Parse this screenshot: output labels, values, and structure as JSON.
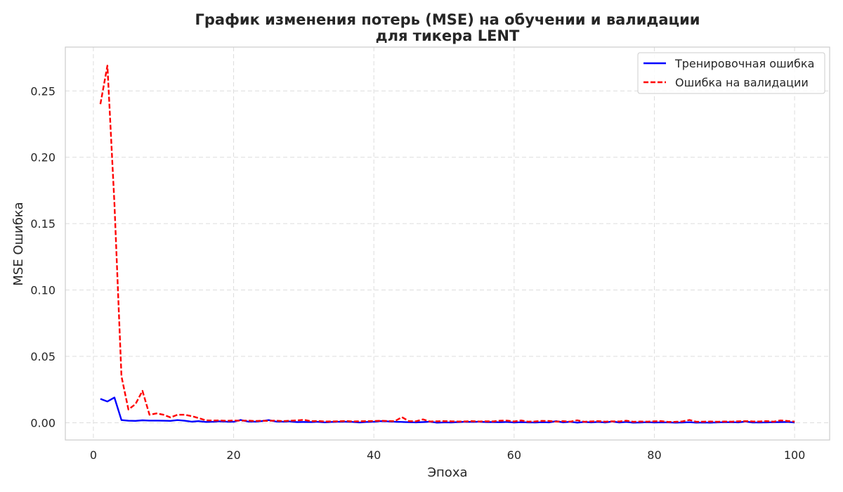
{
  "chart_data": {
    "type": "line",
    "title_line1": "График изменения потерь (MSE) на обучении и валидации",
    "title_line2": "для тикера LENT",
    "xlabel": "Эпоха",
    "ylabel": "MSE Ошибка",
    "xlim": [
      -4,
      105
    ],
    "ylim": [
      -0.013,
      0.283
    ],
    "xticks": [
      0,
      20,
      40,
      60,
      80,
      100
    ],
    "xtick_labels": [
      "0",
      "20",
      "40",
      "60",
      "80",
      "100"
    ],
    "yticks": [
      0.0,
      0.05,
      0.1,
      0.15,
      0.2,
      0.25
    ],
    "ytick_labels": [
      "0.00",
      "0.05",
      "0.10",
      "0.15",
      "0.20",
      "0.25"
    ],
    "grid": true,
    "legend_position": "top-right",
    "x": [
      1,
      2,
      3,
      4,
      5,
      6,
      7,
      8,
      9,
      10,
      11,
      12,
      13,
      14,
      15,
      16,
      17,
      18,
      19,
      20,
      21,
      22,
      23,
      24,
      25,
      26,
      27,
      28,
      29,
      30,
      31,
      32,
      33,
      34,
      35,
      36,
      37,
      38,
      39,
      40,
      41,
      42,
      43,
      44,
      45,
      46,
      47,
      48,
      49,
      50,
      51,
      52,
      53,
      54,
      55,
      56,
      57,
      58,
      59,
      60,
      61,
      62,
      63,
      64,
      65,
      66,
      67,
      68,
      69,
      70,
      71,
      72,
      73,
      74,
      75,
      76,
      77,
      78,
      79,
      80,
      81,
      82,
      83,
      84,
      85,
      86,
      87,
      88,
      89,
      90,
      91,
      92,
      93,
      94,
      95,
      96,
      97,
      98,
      99,
      100
    ],
    "series": [
      {
        "name": "Тренировочная ошибка",
        "color": "#0000ff",
        "style": "solid",
        "values": [
          0.018,
          0.016,
          0.019,
          0.002,
          0.0015,
          0.0014,
          0.0018,
          0.0016,
          0.0016,
          0.0015,
          0.0014,
          0.002,
          0.0015,
          0.0008,
          0.0012,
          0.0006,
          0.0007,
          0.0011,
          0.0008,
          0.0007,
          0.0021,
          0.0009,
          0.0008,
          0.0012,
          0.002,
          0.0009,
          0.0008,
          0.001,
          0.0005,
          0.0006,
          0.0005,
          0.0007,
          0.0003,
          0.0006,
          0.0007,
          0.0008,
          0.0006,
          0.0002,
          0.0006,
          0.0007,
          0.0012,
          0.001,
          0.0007,
          0.0006,
          0.0004,
          0.0003,
          0.0005,
          0.0008,
          0.0001,
          0.0003,
          0.0002,
          0.0005,
          0.0007,
          0.0006,
          0.0008,
          0.0005,
          0.0005,
          0.0004,
          0.0006,
          0.0002,
          0.0004,
          0.0003,
          0.0002,
          0.0004,
          0.0003,
          0.0012,
          0.0003,
          0.0007,
          0.0001,
          0.0006,
          0.0003,
          0.0006,
          0.0002,
          0.0009,
          0.0002,
          0.0006,
          0.0001,
          0.0002,
          0.0004,
          0.0002,
          0.0003,
          0.0003,
          0.0001,
          0.0002,
          0.0004,
          0.0001,
          0.0002,
          0.0001,
          0.0003,
          0.0004,
          0.0004,
          0.0003,
          0.0009,
          0.0002,
          0.0002,
          0.0003,
          0.0004,
          0.0005,
          0.0006,
          0.0002
        ]
      },
      {
        "name": "Ошибка на валидации",
        "color": "#ff0000",
        "style": "dashed",
        "values": [
          0.24,
          0.269,
          0.165,
          0.035,
          0.01,
          0.014,
          0.024,
          0.006,
          0.007,
          0.006,
          0.004,
          0.006,
          0.006,
          0.005,
          0.0035,
          0.0018,
          0.0016,
          0.0017,
          0.0014,
          0.0017,
          0.0015,
          0.0016,
          0.0013,
          0.0015,
          0.0014,
          0.0016,
          0.0012,
          0.0015,
          0.0017,
          0.0022,
          0.0012,
          0.0013,
          0.0009,
          0.001,
          0.0011,
          0.0013,
          0.001,
          0.0011,
          0.0012,
          0.0013,
          0.0015,
          0.0013,
          0.0012,
          0.0042,
          0.0012,
          0.0011,
          0.0025,
          0.0009,
          0.0011,
          0.0012,
          0.0011,
          0.0009,
          0.001,
          0.0012,
          0.0009,
          0.0011,
          0.001,
          0.0015,
          0.0016,
          0.0009,
          0.0017,
          0.0008,
          0.001,
          0.0014,
          0.0013,
          0.0008,
          0.0012,
          0.0008,
          0.0018,
          0.0007,
          0.001,
          0.0012,
          0.0008,
          0.0011,
          0.0009,
          0.0015,
          0.0007,
          0.0009,
          0.0008,
          0.0011,
          0.0012,
          0.0006,
          0.0007,
          0.001,
          0.0021,
          0.0007,
          0.0008,
          0.0009,
          0.0007,
          0.0009,
          0.0008,
          0.0011,
          0.0012,
          0.001,
          0.0009,
          0.0012,
          0.0008,
          0.0017,
          0.0013,
          0.0008
        ]
      }
    ]
  }
}
